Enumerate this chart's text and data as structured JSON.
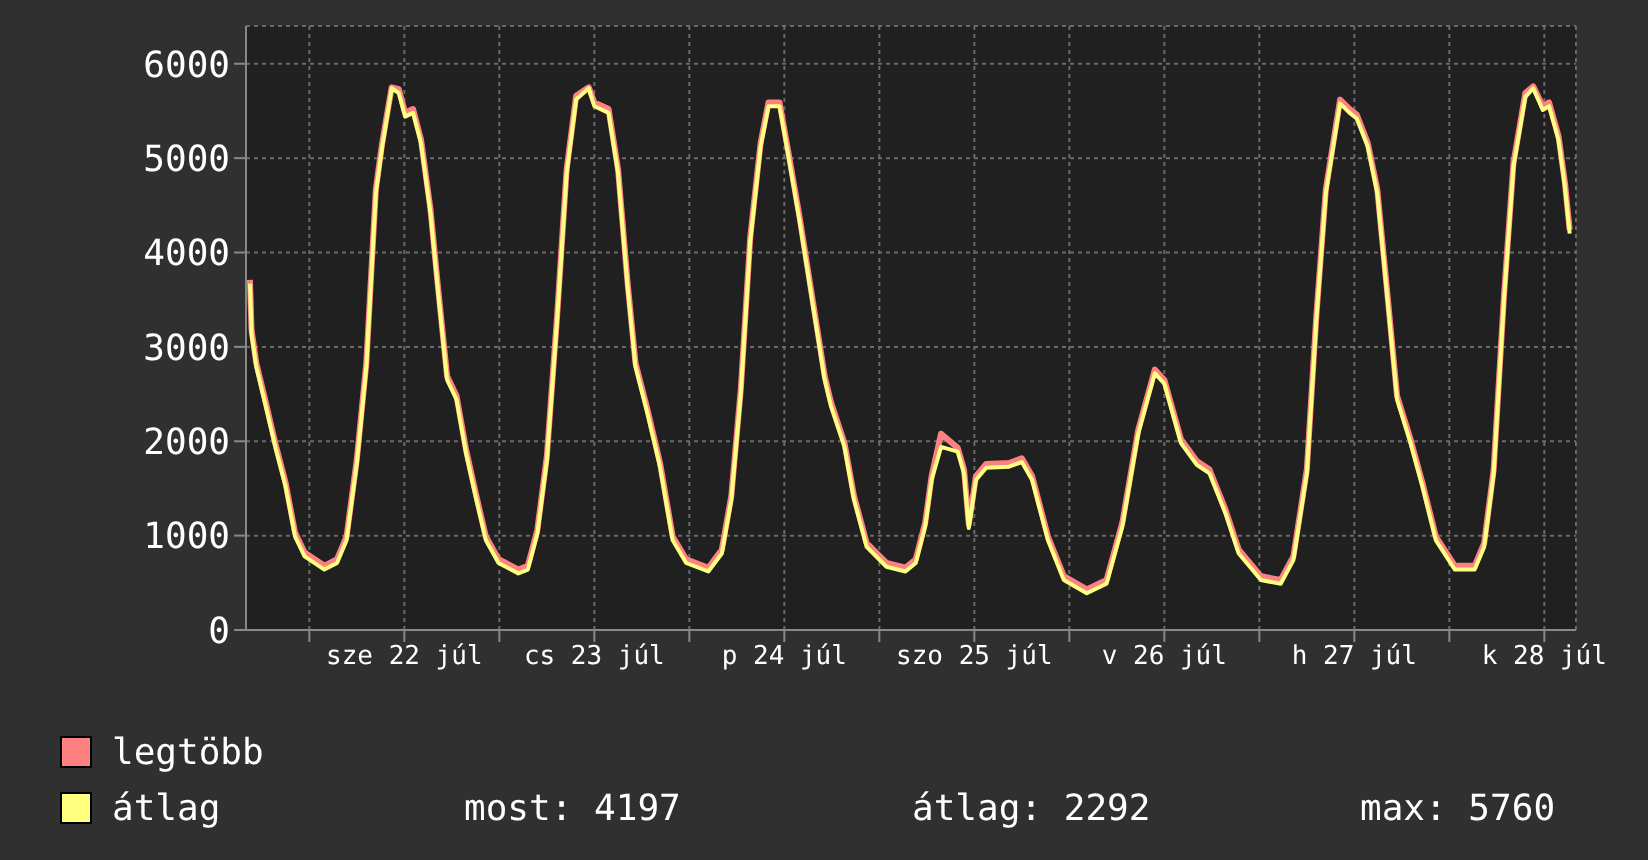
{
  "chart_data": {
    "type": "line",
    "x": [
      "--07-21T16:30",
      "--07-21T16:42",
      "--07-21T17:18",
      "--07-21T18:30",
      "--07-21T19:42",
      "--07-21T21:00",
      "--07-21T22:12",
      "--07-21T23:24",
      "--07-22T01:54",
      "--07-22T03:30",
      "--07-22T04:42",
      "--07-22T06:00",
      "--07-22T07:12",
      "--07-22T08:24",
      "--07-22T09:12",
      "--07-22T10:24",
      "--07-22T11:18",
      "--07-22T12:06",
      "--07-22T13:06",
      "--07-22T14:06",
      "--07-22T15:18",
      "--07-22T16:12",
      "--07-22T17:24",
      "--07-22T18:36",
      "--07-22T19:48",
      "--07-22T21:06",
      "--07-22T22:18",
      "--07-22T23:54",
      "--07-23T02:24",
      "--07-23T03:36",
      "--07-23T04:48",
      "--07-23T06:00",
      "--07-23T07:18",
      "--07-23T08:30",
      "--07-23T09:42",
      "--07-23T11:18",
      "--07-23T12:00",
      "--07-23T13:48",
      "--07-23T15:00",
      "--07-23T16:12",
      "--07-23T17:12",
      "--07-23T18:42",
      "--07-23T20:18",
      "--07-23T21:54",
      "--07-23T23:36",
      "--07-24T02:24",
      "--07-24T04:06",
      "--07-24T05:18",
      "--07-24T06:30",
      "--07-24T07:42",
      "--07-24T09:00",
      "--07-24T10:00",
      "--07-24T11:24",
      "--07-24T12:36",
      "--07-24T13:54",
      "--07-24T15:30",
      "--07-24T17:06",
      "--07-24T17:54",
      "--07-24T19:36",
      "--07-24T20:48",
      "--07-24T22:24",
      "--07-25T00:54",
      "--07-25T03:18",
      "--07-25T04:36",
      "--07-25T05:48",
      "--07-25T06:36",
      "--07-25T07:48",
      "--07-25T09:54",
      "--07-25T10:42",
      "--07-25T11:18",
      "--07-25T12:12",
      "--07-25T13:30",
      "--07-25T16:24",
      "--07-25T18:00",
      "--07-25T19:18",
      "--07-25T21:18",
      "--07-25T23:18",
      "--07-26T02:12",
      "--07-26T04:42",
      "--07-26T06:42",
      "--07-26T08:42",
      "--07-26T10:48",
      "--07-26T12:00",
      "--07-26T14:06",
      "--07-26T16:06",
      "--07-26T17:42",
      "--07-26T19:42",
      "--07-26T21:24",
      "--07-27T00:12",
      "--07-27T02:42",
      "--07-27T04:18",
      "--07-27T06:00",
      "--07-27T07:12",
      "--07-27T08:24",
      "--07-27T10:12",
      "--07-27T11:24",
      "--07-27T12:18",
      "--07-27T13:42",
      "--07-27T14:54",
      "--07-27T16:12",
      "--07-27T17:24",
      "--07-27T19:00",
      "--07-27T20:36",
      "--07-27T22:18",
      "--07-28T00:42",
      "--07-28T03:12",
      "--07-28T04:24",
      "--07-28T05:36",
      "--07-28T06:54",
      "--07-28T08:06",
      "--07-28T09:36",
      "--07-28T10:36",
      "--07-28T11:48",
      "--07-28T12:36",
      "--07-28T13:48",
      "--07-28T14:36",
      "--07-28T15:12"
    ],
    "series": [
      {
        "name": "legtöbb",
        "color": "#ff8080",
        "values": [
          3710,
          3180,
          2830,
          2410,
          1980,
          1560,
          1030,
          820,
          680,
          750,
          990,
          1810,
          2830,
          4670,
          5160,
          5750,
          5730,
          5480,
          5520,
          5200,
          4460,
          3680,
          2690,
          2480,
          1910,
          1420,
          990,
          750,
          640,
          680,
          1060,
          1840,
          3330,
          4880,
          5660,
          5750,
          5590,
          5520,
          4880,
          3680,
          2830,
          2340,
          1770,
          990,
          750,
          660,
          850,
          1420,
          2550,
          4170,
          5160,
          5590,
          5590,
          5020,
          4390,
          3540,
          2690,
          2410,
          1980,
          1420,
          920,
          710,
          660,
          750,
          1140,
          1630,
          2080,
          1930,
          1700,
          1120,
          1630,
          1760,
          1770,
          1820,
          1630,
          990,
          570,
          430,
          530,
          1140,
          2120,
          2760,
          2650,
          2020,
          1790,
          1700,
          1280,
          850,
          570,
          530,
          780,
          1700,
          3330,
          4670,
          5620,
          5520,
          5460,
          5160,
          4670,
          3540,
          2480,
          2050,
          1560,
          990,
          680,
          680,
          920,
          1700,
          3540,
          4950,
          5690,
          5760,
          5550,
          5590,
          5230,
          4740,
          4240
        ]
      },
      {
        "name": "átlag",
        "color": "#ffff80",
        "values": [
          3670,
          3140,
          2790,
          2370,
          1940,
          1520,
          990,
          780,
          640,
          710,
          950,
          1770,
          2790,
          4630,
          5120,
          5740,
          5690,
          5440,
          5480,
          5160,
          4420,
          3640,
          2650,
          2440,
          1870,
          1380,
          950,
          710,
          600,
          640,
          1020,
          1800,
          3290,
          4840,
          5620,
          5740,
          5550,
          5480,
          4840,
          3640,
          2790,
          2300,
          1730,
          950,
          710,
          620,
          810,
          1380,
          2510,
          4130,
          5120,
          5550,
          5550,
          4980,
          4350,
          3500,
          2650,
          2370,
          1940,
          1380,
          880,
          670,
          620,
          710,
          1100,
          1590,
          1940,
          1890,
          1660,
          1080,
          1590,
          1720,
          1730,
          1780,
          1590,
          950,
          530,
          390,
          490,
          1100,
          2080,
          2720,
          2610,
          1980,
          1750,
          1660,
          1240,
          810,
          530,
          490,
          740,
          1660,
          3290,
          4630,
          5580,
          5480,
          5420,
          5120,
          4630,
          3500,
          2440,
          2010,
          1520,
          950,
          640,
          640,
          880,
          1660,
          3500,
          4910,
          5650,
          5740,
          5510,
          5550,
          5190,
          4700,
          4200
        ]
      }
    ],
    "xlim": [
      "--07-21T16:00",
      "--07-28T16:00"
    ],
    "xticks": [
      {
        "value": "--07-22T00:00",
        "label": null
      },
      {
        "value": "--07-22T12:00",
        "label": "sze 22 júl"
      },
      {
        "value": "--07-23T00:00",
        "label": null
      },
      {
        "value": "--07-23T12:00",
        "label": "cs 23 júl"
      },
      {
        "value": "--07-24T00:00",
        "label": null
      },
      {
        "value": "--07-24T12:00",
        "label": "p 24 júl"
      },
      {
        "value": "--07-25T00:00",
        "label": null
      },
      {
        "value": "--07-25T12:00",
        "label": "szo 25 júl"
      },
      {
        "value": "--07-26T00:00",
        "label": null
      },
      {
        "value": "--07-26T12:00",
        "label": "v 26 júl"
      },
      {
        "value": "--07-27T00:00",
        "label": null
      },
      {
        "value": "--07-27T12:00",
        "label": "h 27 júl"
      },
      {
        "value": "--07-28T00:00",
        "label": null
      },
      {
        "value": "--07-28T12:00",
        "label": "k 28 júl"
      }
    ],
    "ylim": [
      0,
      6400
    ],
    "yticks": [
      0,
      1000,
      2000,
      3000,
      4000,
      5000,
      6000
    ],
    "grid": true,
    "legend": "bottom",
    "marker": "none",
    "line_style": "solid",
    "annotations": [
      "most: 4197",
      "átlag: 2292",
      "max: 5760"
    ]
  }
}
